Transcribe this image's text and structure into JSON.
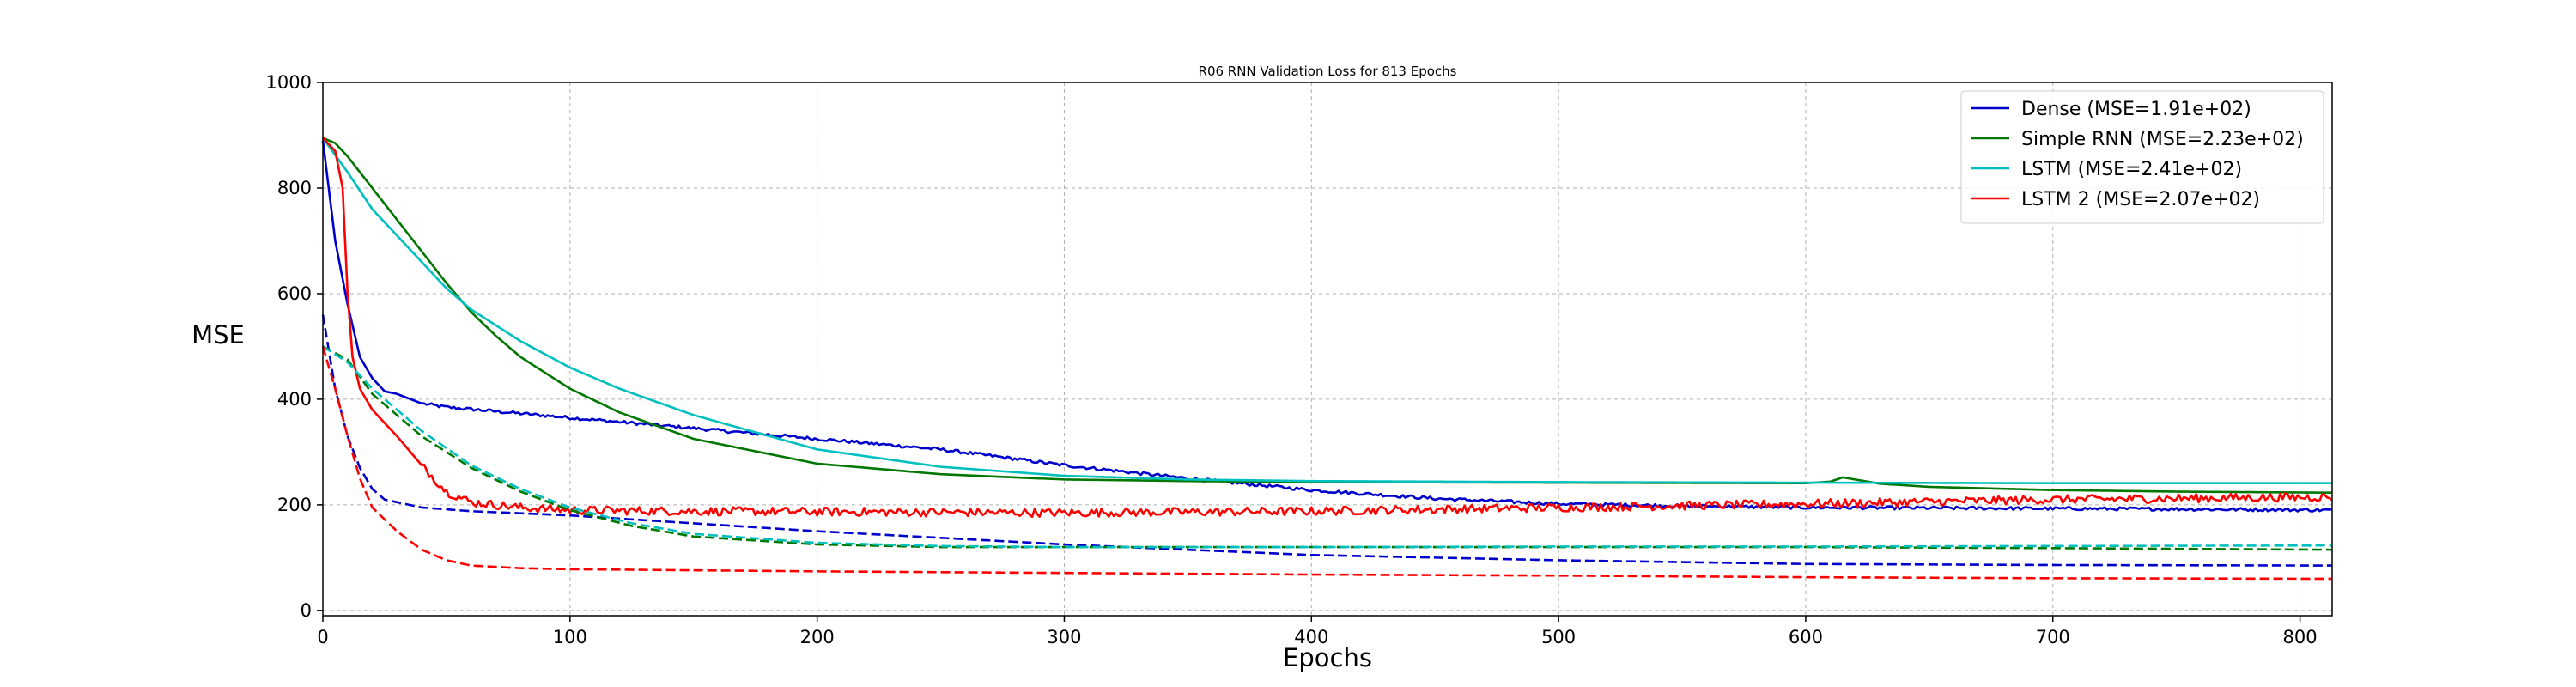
{
  "chart_data": {
    "type": "line",
    "title": "R06 RNN Validation Loss for  813 Epochs",
    "xlabel": "Epochs",
    "ylabel": "MSE",
    "xlim": [
      0,
      813
    ],
    "ylim": [
      -10,
      1000
    ],
    "xticks": [
      0,
      100,
      200,
      300,
      400,
      500,
      600,
      700,
      800
    ],
    "yticks": [
      0,
      200,
      400,
      600,
      800,
      1000
    ],
    "grid": true,
    "legend_position": "top-right",
    "series": [
      {
        "name": "Dense (MSE=1.91e+02)",
        "color": "#0000cc",
        "style": "solid",
        "noise": 3,
        "points": [
          [
            0,
            890
          ],
          [
            5,
            700
          ],
          [
            10,
            580
          ],
          [
            15,
            480
          ],
          [
            20,
            440
          ],
          [
            25,
            415
          ],
          [
            30,
            410
          ],
          [
            40,
            392
          ],
          [
            50,
            385
          ],
          [
            100,
            365
          ],
          [
            150,
            345
          ],
          [
            200,
            325
          ],
          [
            250,
            305
          ],
          [
            300,
            275
          ],
          [
            350,
            250
          ],
          [
            400,
            228
          ],
          [
            450,
            212
          ],
          [
            500,
            202
          ],
          [
            550,
            198
          ],
          [
            600,
            195
          ],
          [
            650,
            194
          ],
          [
            700,
            193
          ],
          [
            750,
            192
          ],
          [
            813,
            190
          ]
        ]
      },
      {
        "name": "Simple RNN (MSE=2.23e+02)",
        "color": "#007700",
        "style": "solid",
        "noise": 0,
        "points": [
          [
            0,
            895
          ],
          [
            5,
            885
          ],
          [
            10,
            860
          ],
          [
            20,
            800
          ],
          [
            30,
            740
          ],
          [
            40,
            680
          ],
          [
            50,
            620
          ],
          [
            60,
            565
          ],
          [
            70,
            520
          ],
          [
            80,
            480
          ],
          [
            100,
            420
          ],
          [
            120,
            375
          ],
          [
            150,
            325
          ],
          [
            200,
            278
          ],
          [
            250,
            258
          ],
          [
            300,
            248
          ],
          [
            350,
            245
          ],
          [
            400,
            243
          ],
          [
            500,
            242
          ],
          [
            600,
            241
          ],
          [
            610,
            244
          ],
          [
            615,
            252
          ],
          [
            620,
            248
          ],
          [
            630,
            240
          ],
          [
            650,
            234
          ],
          [
            700,
            228
          ],
          [
            750,
            225
          ],
          [
            813,
            223
          ]
        ]
      },
      {
        "name": "LSTM (MSE=2.41e+02)",
        "color": "#00bfbf",
        "style": "solid",
        "noise": 0,
        "points": [
          [
            0,
            895
          ],
          [
            10,
            830
          ],
          [
            20,
            760
          ],
          [
            30,
            710
          ],
          [
            40,
            660
          ],
          [
            50,
            610
          ],
          [
            60,
            570
          ],
          [
            80,
            510
          ],
          [
            100,
            460
          ],
          [
            120,
            420
          ],
          [
            150,
            370
          ],
          [
            200,
            305
          ],
          [
            250,
            272
          ],
          [
            300,
            255
          ],
          [
            350,
            248
          ],
          [
            400,
            245
          ],
          [
            500,
            243
          ],
          [
            600,
            242
          ],
          [
            700,
            241
          ],
          [
            813,
            241
          ]
        ]
      },
      {
        "name": "LSTM 2 (MSE=2.07e+02)",
        "color": "#ff0000",
        "style": "solid",
        "noise": 8,
        "points": [
          [
            0,
            895
          ],
          [
            5,
            870
          ],
          [
            8,
            800
          ],
          [
            10,
            600
          ],
          [
            12,
            480
          ],
          [
            15,
            420
          ],
          [
            20,
            380
          ],
          [
            30,
            330
          ],
          [
            40,
            275
          ],
          [
            50,
            225
          ],
          [
            60,
            205
          ],
          [
            80,
            195
          ],
          [
            100,
            190
          ],
          [
            150,
            188
          ],
          [
            200,
            187
          ],
          [
            300,
            185
          ],
          [
            400,
            188
          ],
          [
            500,
            195
          ],
          [
            600,
            202
          ],
          [
            700,
            210
          ],
          [
            813,
            215
          ]
        ]
      },
      {
        "name": "",
        "color": "#0000cc",
        "style": "dashed",
        "noise": 0,
        "points": [
          [
            0,
            560
          ],
          [
            5,
            420
          ],
          [
            10,
            330
          ],
          [
            15,
            270
          ],
          [
            20,
            230
          ],
          [
            25,
            210
          ],
          [
            30,
            205
          ],
          [
            40,
            195
          ],
          [
            60,
            188
          ],
          [
            100,
            180
          ],
          [
            150,
            165
          ],
          [
            200,
            150
          ],
          [
            300,
            125
          ],
          [
            400,
            105
          ],
          [
            500,
            95
          ],
          [
            600,
            88
          ],
          [
            700,
            86
          ],
          [
            813,
            85
          ]
        ]
      },
      {
        "name": "",
        "color": "#007700",
        "style": "dashed",
        "noise": 0,
        "points": [
          [
            0,
            500
          ],
          [
            10,
            475
          ],
          [
            20,
            410
          ],
          [
            40,
            330
          ],
          [
            60,
            270
          ],
          [
            80,
            225
          ],
          [
            100,
            190
          ],
          [
            125,
            160
          ],
          [
            150,
            140
          ],
          [
            200,
            125
          ],
          [
            250,
            120
          ],
          [
            300,
            120
          ],
          [
            400,
            120
          ],
          [
            500,
            120
          ],
          [
            600,
            120
          ],
          [
            700,
            118
          ],
          [
            813,
            115
          ]
        ]
      },
      {
        "name": "",
        "color": "#00bfbf",
        "style": "dashed",
        "noise": 0,
        "points": [
          [
            0,
            500
          ],
          [
            10,
            470
          ],
          [
            20,
            420
          ],
          [
            40,
            340
          ],
          [
            60,
            275
          ],
          [
            80,
            230
          ],
          [
            100,
            195
          ],
          [
            125,
            165
          ],
          [
            150,
            145
          ],
          [
            200,
            128
          ],
          [
            250,
            122
          ],
          [
            300,
            120
          ],
          [
            400,
            120
          ],
          [
            500,
            121
          ],
          [
            600,
            121
          ],
          [
            700,
            122
          ],
          [
            813,
            123
          ]
        ]
      },
      {
        "name": "",
        "color": "#ff0000",
        "style": "dashed",
        "noise": 0,
        "points": [
          [
            0,
            500
          ],
          [
            5,
            420
          ],
          [
            10,
            330
          ],
          [
            15,
            250
          ],
          [
            20,
            195
          ],
          [
            30,
            150
          ],
          [
            40,
            115
          ],
          [
            50,
            95
          ],
          [
            60,
            85
          ],
          [
            80,
            80
          ],
          [
            100,
            78
          ],
          [
            150,
            76
          ],
          [
            200,
            74
          ],
          [
            300,
            71
          ],
          [
            400,
            68
          ],
          [
            500,
            66
          ],
          [
            600,
            63
          ],
          [
            700,
            61
          ],
          [
            813,
            60
          ]
        ]
      }
    ]
  }
}
